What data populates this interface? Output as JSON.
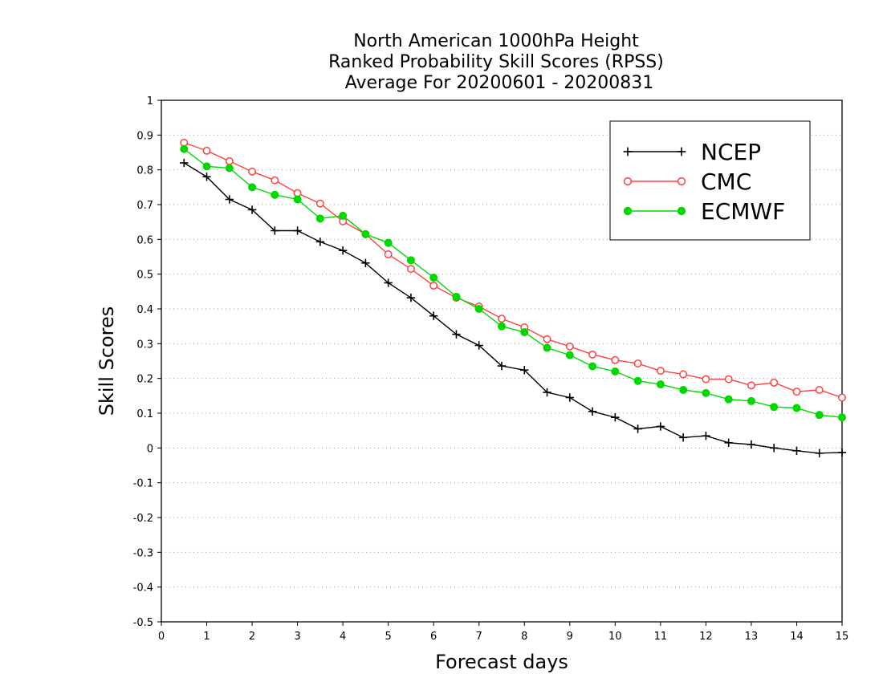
{
  "chart_data": {
    "type": "line",
    "title": [
      "North American 1000hPa Height",
      "Ranked Probability Skill Scores (RPSS)",
      "Average For 20200601 - 20200831"
    ],
    "xlabel": "Forecast days",
    "ylabel": "Skill Scores",
    "xlim": [
      0,
      15
    ],
    "ylim": [
      -0.5,
      1
    ],
    "xticks": [
      0,
      1,
      2,
      3,
      4,
      5,
      6,
      7,
      8,
      9,
      10,
      11,
      12,
      13,
      14,
      15
    ],
    "xtick_labels": [
      "0",
      "1",
      "2",
      "3",
      "4",
      "5",
      "6",
      "7",
      "8",
      "9",
      "10",
      "11",
      "12",
      "13",
      "14",
      "15"
    ],
    "yticks": [
      -0.5,
      -0.4,
      -0.3,
      -0.2,
      -0.1,
      0,
      0.1,
      0.2,
      0.3,
      0.4,
      0.5,
      0.6,
      0.7,
      0.8,
      0.9,
      1
    ],
    "ytick_labels": [
      "-0.5",
      "-0.4",
      "-0.3",
      "-0.2",
      "-0.1",
      "0",
      "0.1",
      "0.2",
      "0.3",
      "0.4",
      "0.5",
      "0.6",
      "0.7",
      "0.8",
      "0.9",
      "1"
    ],
    "grid": "horizontal dotted",
    "legend_position": "top-right",
    "x": [
      0.5,
      1,
      1.5,
      2,
      2.5,
      3,
      3.5,
      4,
      4.5,
      5,
      5.5,
      6,
      6.5,
      7,
      7.5,
      8,
      8.5,
      9,
      9.5,
      10,
      10.5,
      11,
      11.5,
      12,
      12.5,
      13,
      13.5,
      14,
      14.5,
      15
    ],
    "series": [
      {
        "name": "NCEP",
        "color": "#000000",
        "marker": "plus",
        "values": [
          0.82,
          0.78,
          0.715,
          0.685,
          0.625,
          0.625,
          0.593,
          0.568,
          0.532,
          0.475,
          0.432,
          0.38,
          0.327,
          0.295,
          0.236,
          0.224,
          0.16,
          0.145,
          0.105,
          0.088,
          0.055,
          0.062,
          0.03,
          0.035,
          0.015,
          0.01,
          0.0,
          -0.008,
          -0.015,
          -0.013
        ]
      },
      {
        "name": "CMC",
        "color": "#ff4040",
        "marker": "open-circle",
        "values": [
          0.878,
          0.855,
          0.825,
          0.795,
          0.77,
          0.733,
          0.703,
          0.652,
          0.615,
          0.557,
          0.515,
          0.467,
          0.432,
          0.407,
          0.372,
          0.347,
          0.313,
          0.292,
          0.269,
          0.253,
          0.243,
          0.222,
          0.212,
          0.198,
          0.198,
          0.18,
          0.188,
          0.162,
          0.167,
          0.145
        ]
      },
      {
        "name": "ECMWF",
        "color": "#00d800",
        "marker": "filled-circle",
        "values": [
          0.86,
          0.81,
          0.805,
          0.75,
          0.728,
          0.715,
          0.66,
          0.668,
          0.615,
          0.59,
          0.54,
          0.49,
          0.435,
          0.4,
          0.35,
          0.333,
          0.288,
          0.267,
          0.235,
          0.22,
          0.193,
          0.183,
          0.167,
          0.158,
          0.14,
          0.135,
          0.118,
          0.115,
          0.095,
          0.088
        ]
      }
    ]
  }
}
